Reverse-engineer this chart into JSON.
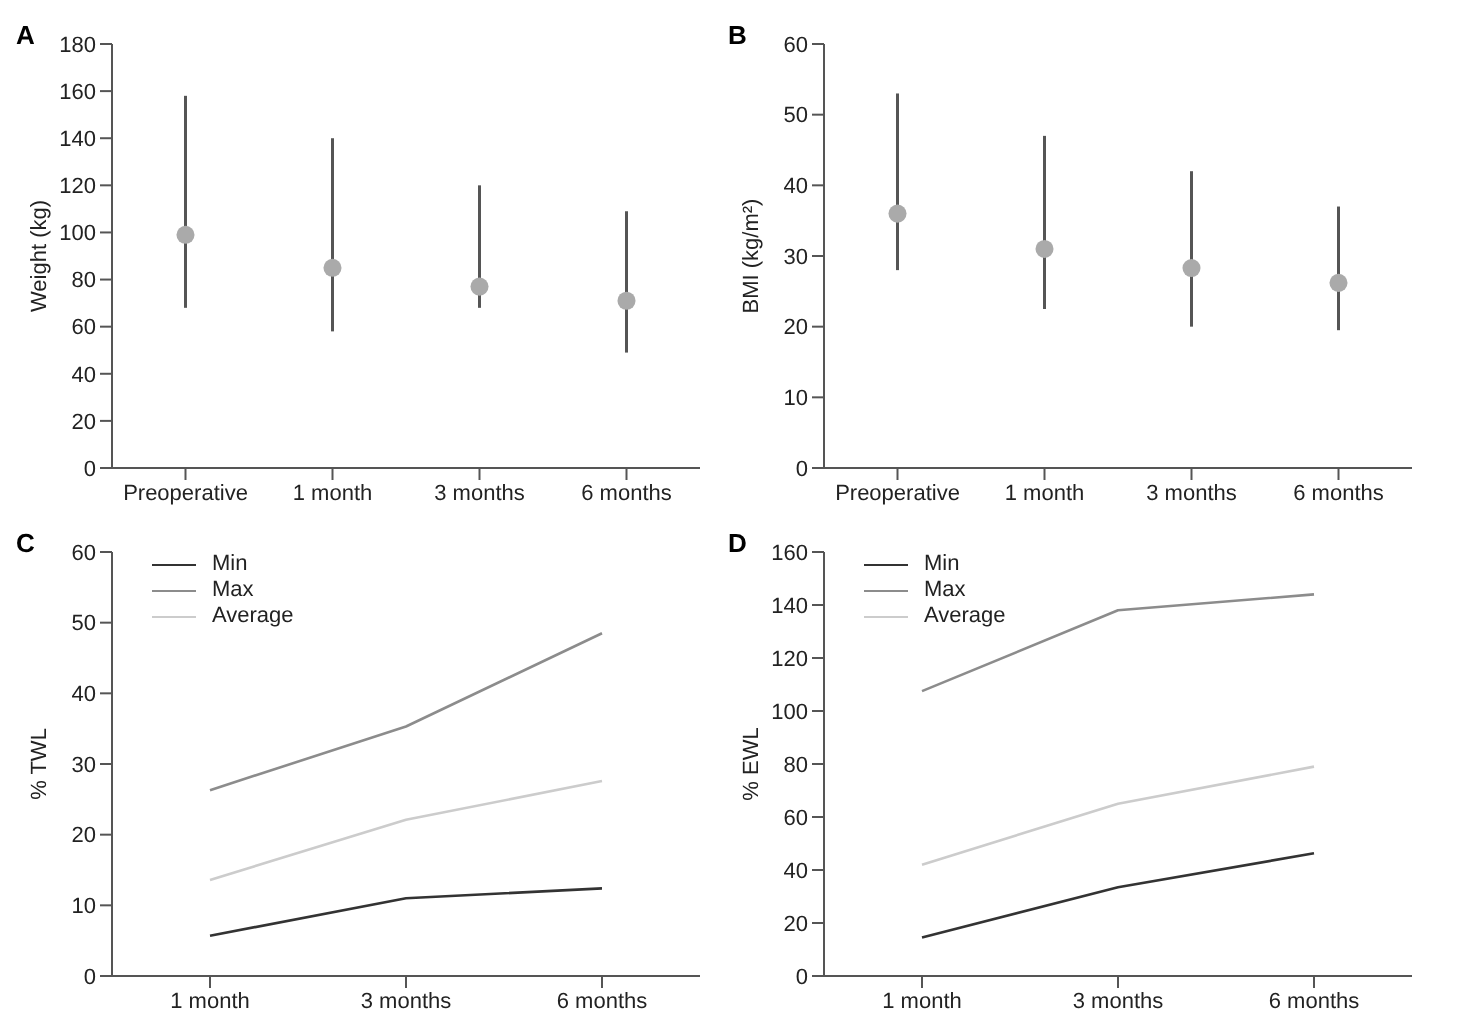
{
  "chart_data": [
    {
      "type": "scatter",
      "title": "A",
      "ylabel": "Weight (kg)",
      "categories": [
        "Preoperative",
        "1 month",
        "3 months",
        "6 months"
      ],
      "series": [
        {
          "color": "#aaaaaa",
          "values": [
            99,
            85,
            77,
            71
          ],
          "errors": [
            [
              68,
              158
            ],
            [
              58,
              140
            ],
            [
              68,
              120
            ],
            [
              49,
              109
            ]
          ]
        }
      ],
      "ylim": [
        0,
        180
      ],
      "yticks": [
        0,
        20,
        40,
        60,
        80,
        100,
        120,
        140,
        160,
        180
      ],
      "grid": false,
      "legend": false,
      "marker": "circle"
    },
    {
      "type": "scatter",
      "title": "B",
      "ylabel": "BMI (kg/m²)",
      "categories": [
        "Preoperative",
        "1 month",
        "3 months",
        "6 months"
      ],
      "series": [
        {
          "color": "#aaaaaa",
          "values": [
            36,
            31,
            28.3,
            26.2
          ],
          "errors": [
            [
              28,
              53
            ],
            [
              22.5,
              47
            ],
            [
              20,
              42
            ],
            [
              19.5,
              37
            ]
          ]
        }
      ],
      "ylim": [
        0,
        60
      ],
      "yticks": [
        0,
        10,
        20,
        30,
        40,
        50,
        60
      ],
      "grid": false,
      "legend": false,
      "marker": "circle"
    },
    {
      "type": "line",
      "title": "C",
      "ylabel": "% TWL",
      "categories": [
        "1 month",
        "3 months",
        "6 months"
      ],
      "series": [
        {
          "name": "Min",
          "color": "#333333",
          "values": [
            5.7,
            11,
            12.4
          ]
        },
        {
          "name": "Max",
          "color": "#8c8c8c",
          "values": [
            26.3,
            35.3,
            48.5
          ]
        },
        {
          "name": "Average",
          "color": "#cccccc",
          "values": [
            13.6,
            22.1,
            27.6
          ]
        }
      ],
      "ylim": [
        0,
        60
      ],
      "yticks": [
        0,
        10,
        20,
        30,
        40,
        50,
        60
      ],
      "grid": false,
      "legend": "top left",
      "marker": "none"
    },
    {
      "type": "line",
      "title": "D",
      "ylabel": "% EWL",
      "categories": [
        "1 month",
        "3 months",
        "6 months"
      ],
      "series": [
        {
          "name": "Min",
          "color": "#333333",
          "values": [
            14.5,
            33.5,
            46.3
          ]
        },
        {
          "name": "Max",
          "color": "#8c8c8c",
          "values": [
            107.5,
            138,
            144
          ]
        },
        {
          "name": "Average",
          "color": "#cccccc",
          "values": [
            42,
            65,
            79
          ]
        }
      ],
      "ylim": [
        0,
        160
      ],
      "yticks": [
        0,
        20,
        40,
        60,
        80,
        100,
        120,
        140,
        160
      ],
      "grid": false,
      "legend": "top left",
      "marker": "none"
    }
  ]
}
